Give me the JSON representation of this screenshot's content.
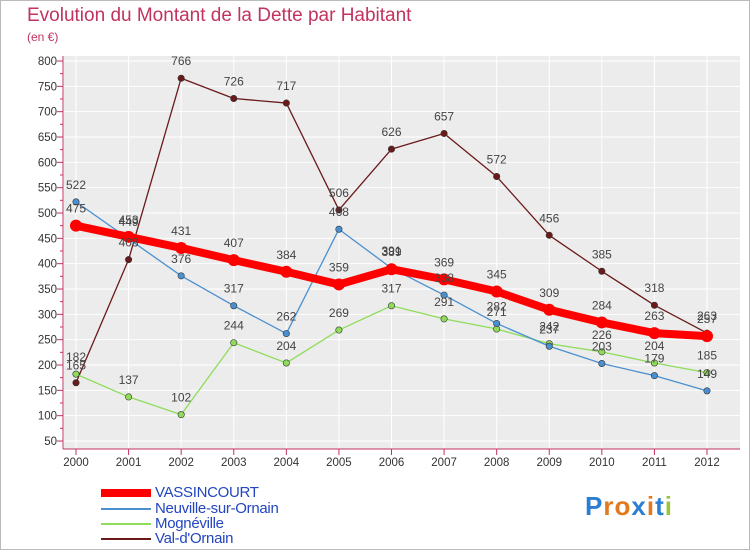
{
  "title": "Evolution du Montant de la Dette par Habitant",
  "subtitle": "(en €)",
  "logo": {
    "text": "Proxiti",
    "letters": [
      "P",
      "r",
      "o",
      "x",
      "i",
      "t",
      "i"
    ],
    "colors": [
      "#2a7ed3",
      "#e07a1f",
      "#e07a1f",
      "#2a7ed3",
      "#e07a1f",
      "#2a7ed3",
      "#9bc53d"
    ]
  },
  "chart_data": {
    "type": "line",
    "x": [
      "2000",
      "2001",
      "2002",
      "2003",
      "2004",
      "2005",
      "2006",
      "2007",
      "2008",
      "2009",
      "2010",
      "2011",
      "2012"
    ],
    "ylim": [
      50,
      800
    ],
    "yticks": [
      50,
      100,
      150,
      200,
      250,
      300,
      350,
      400,
      450,
      500,
      550,
      600,
      650,
      700,
      750,
      800
    ],
    "grid": true,
    "legend": "bottom-left",
    "series": [
      {
        "name": "VASSINCOURT",
        "color": "#ff0000",
        "values": [
          475,
          453,
          431,
          407,
          384,
          359,
          389,
          369,
          345,
          309,
          284,
          263,
          257
        ]
      },
      {
        "name": "Neuville-sur-Ornain",
        "color": "#4a90d0",
        "values": [
          522,
          449,
          376,
          317,
          262,
          468,
          391,
          338,
          282,
          237,
          203,
          179,
          149
        ]
      },
      {
        "name": "Mognéville",
        "color": "#8fdc5a",
        "values": [
          182,
          137,
          102,
          244,
          204,
          269,
          317,
          291,
          271,
          242,
          226,
          204,
          185
        ]
      },
      {
        "name": "Val-d'Ornain",
        "color": "#6b1a1a",
        "values": [
          165,
          408,
          766,
          726,
          717,
          506,
          626,
          657,
          572,
          456,
          385,
          318,
          263
        ]
      }
    ],
    "point_labels": [
      [
        "475",
        "453",
        "431",
        "407",
        "384",
        "359",
        "389",
        "369",
        "345",
        "309",
        "284",
        "263",
        "257"
      ],
      [
        "522",
        "449",
        "376",
        "317",
        "262",
        "468",
        "391",
        "338",
        "282",
        "237",
        "203",
        "179",
        "149"
      ],
      [
        "182",
        "137",
        "102",
        "244",
        "204",
        "269",
        "317",
        "291",
        "271",
        "242",
        "226",
        "204",
        "185"
      ],
      [
        "165",
        "408",
        "766",
        "726",
        "717",
        "506",
        "626",
        "657",
        "572",
        "456",
        "385",
        "318",
        "263"
      ]
    ]
  }
}
